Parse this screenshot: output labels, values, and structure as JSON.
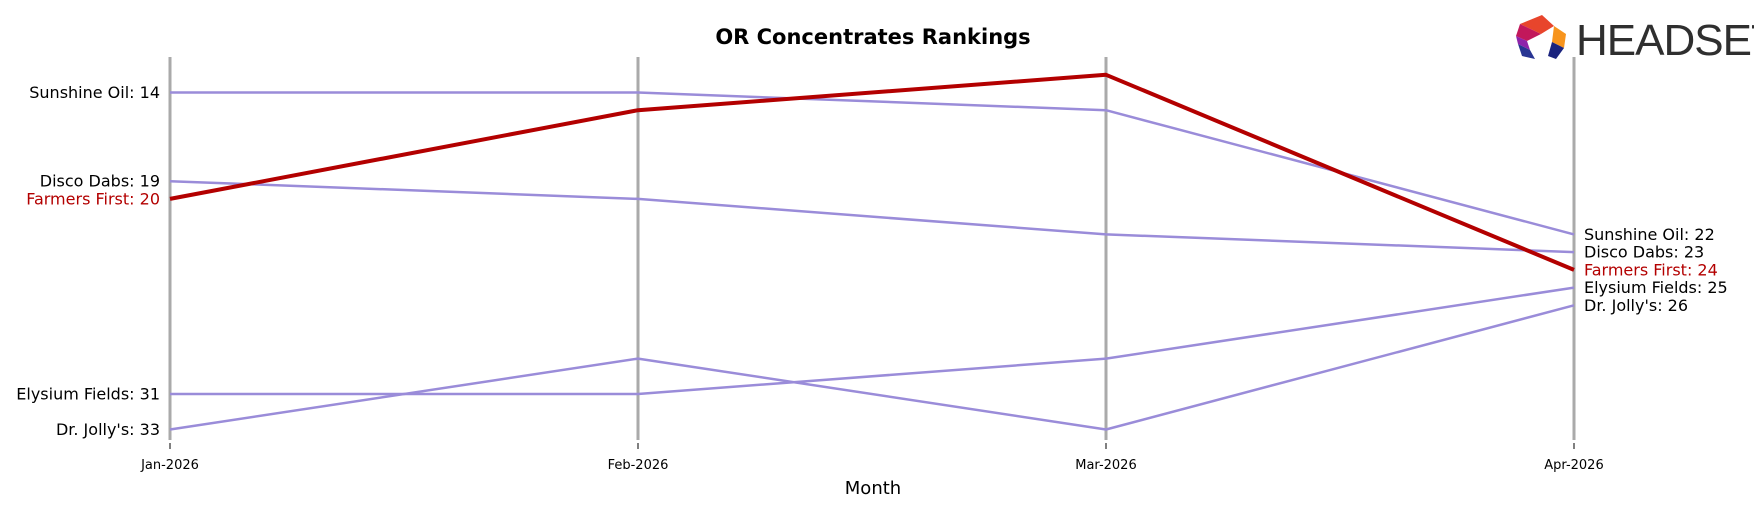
{
  "chart_data": {
    "type": "line",
    "title": "OR Concentrates Rankings",
    "xlabel": "Month",
    "ylabel": "",
    "x": [
      "Jan-2026",
      "Feb-2026",
      "Mar-2026",
      "Apr-2026"
    ],
    "y_scale": "rank (inverted, 1 at top)",
    "ylim": [
      34,
      13
    ],
    "grid": false,
    "highlight_color": "#b30000",
    "series_color": "#9a8cd9",
    "axis_line_color": "#aaaaaa",
    "series": [
      {
        "name": "Sunshine Oil",
        "values": [
          14,
          14,
          15,
          22
        ],
        "highlight": false
      },
      {
        "name": "Disco Dabs",
        "values": [
          19,
          20,
          22,
          23
        ],
        "highlight": false
      },
      {
        "name": "Farmers First",
        "values": [
          20,
          15,
          13,
          24
        ],
        "highlight": true
      },
      {
        "name": "Elysium Fields",
        "values": [
          31,
          31,
          29,
          25
        ],
        "highlight": false
      },
      {
        "name": "Dr. Jolly's",
        "values": [
          33,
          29,
          33,
          26
        ],
        "highlight": false
      }
    ],
    "start_labels": [
      {
        "text": "Sunshine Oil: 14",
        "rank": 14,
        "highlight": false
      },
      {
        "text": "Disco Dabs: 19",
        "rank": 19,
        "highlight": false
      },
      {
        "text": "Farmers First: 20",
        "rank": 20,
        "highlight": true
      },
      {
        "text": "Elysium Fields: 31",
        "rank": 31,
        "highlight": false
      },
      {
        "text": "Dr. Jolly's: 33",
        "rank": 33,
        "highlight": false
      }
    ],
    "end_labels": [
      {
        "text": "Sunshine Oil: 22",
        "rank": 22,
        "highlight": false
      },
      {
        "text": "Disco Dabs: 23",
        "rank": 23,
        "highlight": false
      },
      {
        "text": "Farmers First: 24",
        "rank": 24,
        "highlight": true
      },
      {
        "text": "Elysium Fields: 25",
        "rank": 25,
        "highlight": false
      },
      {
        "text": "Dr. Jolly's: 26",
        "rank": 26,
        "highlight": false
      }
    ]
  },
  "logo": {
    "text": "HEADSET",
    "colors": [
      "#e8452c",
      "#f7941d",
      "#c2185b",
      "#8e24aa",
      "#283593",
      "#1a237e"
    ]
  }
}
